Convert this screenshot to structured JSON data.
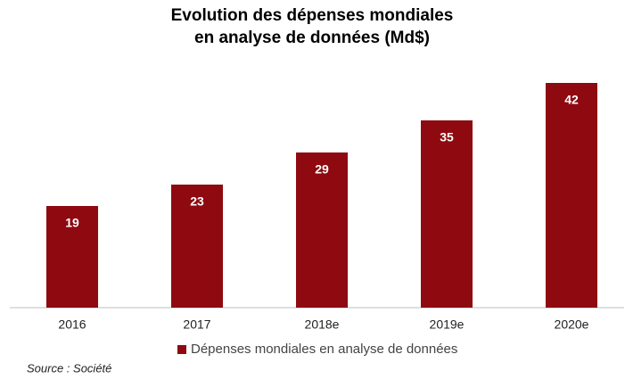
{
  "chart_data": {
    "type": "bar",
    "title": [
      "Evolution des dépenses mondiales",
      "en analyse de données (Md$)"
    ],
    "categories": [
      "2016",
      "2017",
      "2018e",
      "2019e",
      "2020e"
    ],
    "series": [
      {
        "name": "Dépenses mondiales en analyse de données",
        "color": "#8e0a10",
        "values": [
          19,
          23,
          29,
          35,
          42
        ]
      }
    ],
    "source": "Source : Société"
  }
}
